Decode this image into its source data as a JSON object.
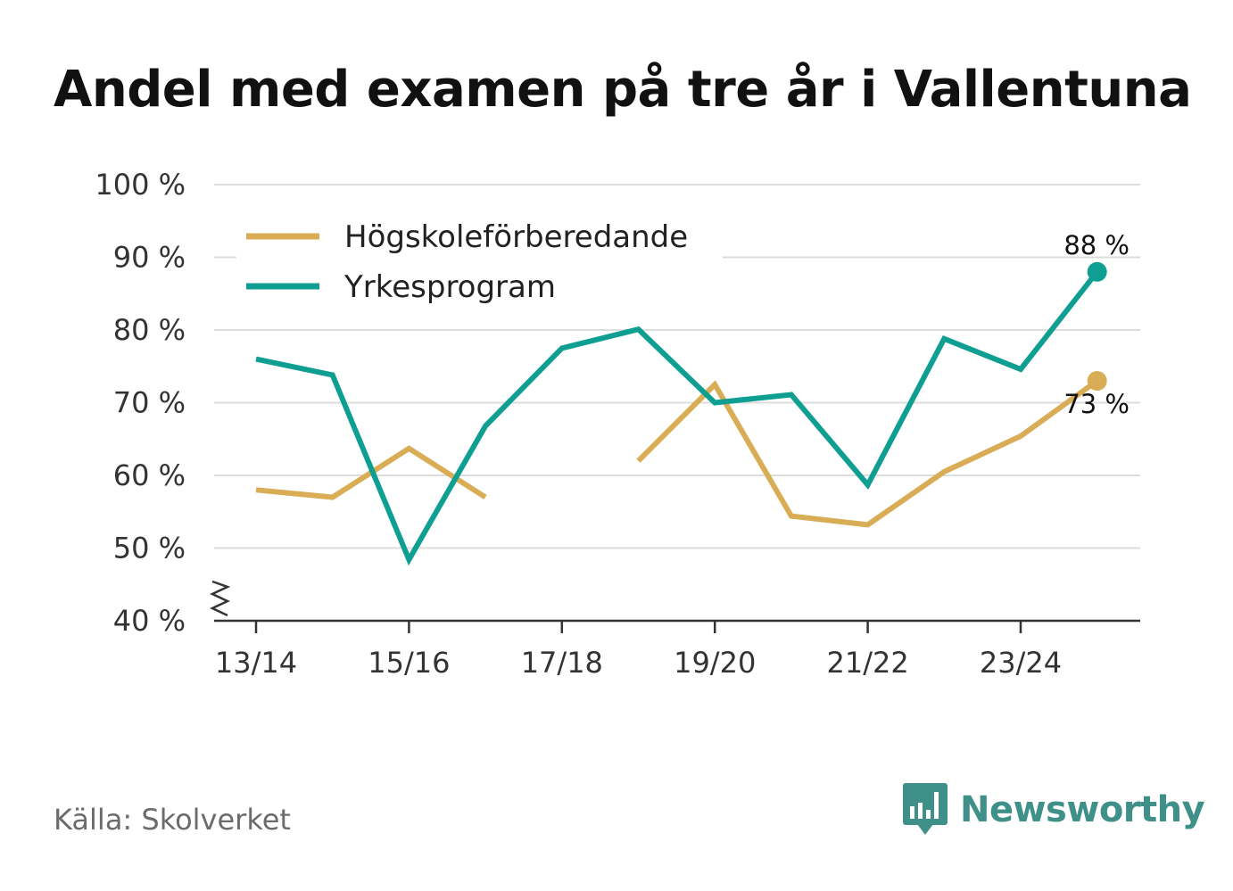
{
  "title": "Andel med examen på tre år i Vallentuna",
  "source": "Källa: Skolverket",
  "brand": {
    "name": "Newsworthy",
    "icon": "bar-chart-speech-icon",
    "color": "#3f9089"
  },
  "chart_data": {
    "type": "line",
    "title": "Andel med examen på tre år i Vallentuna",
    "xlabel": "",
    "ylabel": "",
    "categories": [
      "13/14",
      "14/15",
      "15/16",
      "16/17",
      "17/18",
      "18/19",
      "19/20",
      "20/21",
      "21/22",
      "22/23",
      "23/24",
      "24/25"
    ],
    "x_tick_labels": [
      "13/14",
      "15/16",
      "17/18",
      "19/20",
      "21/22",
      "23/24"
    ],
    "y_tick_labels": [
      "40 %",
      "50 %",
      "60 %",
      "70 %",
      "80 %",
      "90 %",
      "100 %"
    ],
    "ylim": [
      40,
      100
    ],
    "y_ticks": [
      40,
      50,
      60,
      70,
      80,
      90,
      100
    ],
    "axis_break": true,
    "grid": true,
    "legend_position": "top-left",
    "series": [
      {
        "name": "Högskoleförberedande",
        "color": "#d9ac56",
        "values": [
          58,
          57,
          63.7,
          57,
          null,
          62,
          72.5,
          54.4,
          53.2,
          60.5,
          65.4,
          73
        ],
        "end_label": "73 %"
      },
      {
        "name": "Yrkesprogram",
        "color": "#0f9e92",
        "values": [
          76,
          73.8,
          48.4,
          66.8,
          77.5,
          80.1,
          70,
          71.1,
          58.7,
          78.8,
          74.6,
          88
        ],
        "end_label": "88 %"
      }
    ]
  }
}
